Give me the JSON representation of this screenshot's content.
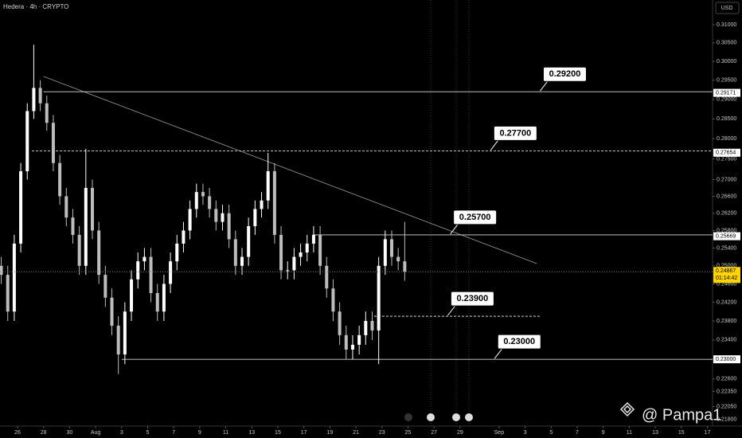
{
  "chart_data": {
    "type": "candlestick",
    "title": "Hedera · 4h · CRYPTO",
    "currency": "USD",
    "watermark": "@ Pampa1",
    "log_scale": true,
    "up_color": "#ffffff",
    "down_color": "#bdbdbd",
    "xlim": [
      -1.345,
      53.4
    ],
    "xticks": [
      {
        "value": 0,
        "label": "26"
      },
      {
        "value": 2,
        "label": "28"
      },
      {
        "value": 4,
        "label": "30"
      },
      {
        "value": 6,
        "label": "Aug"
      },
      {
        "value": 8,
        "label": "3"
      },
      {
        "value": 10,
        "label": "5"
      },
      {
        "value": 12,
        "label": "7"
      },
      {
        "value": 14,
        "label": "9"
      },
      {
        "value": 16,
        "label": "11"
      },
      {
        "value": 18,
        "label": "13"
      },
      {
        "value": 20,
        "label": "15"
      },
      {
        "value": 22,
        "label": "17"
      },
      {
        "value": 24,
        "label": "19"
      },
      {
        "value": 26,
        "label": "21"
      },
      {
        "value": 28,
        "label": "23"
      },
      {
        "value": 30,
        "label": "25"
      },
      {
        "value": 32,
        "label": "27"
      },
      {
        "value": 34,
        "label": "29"
      },
      {
        "value": 37,
        "label": "Sep"
      },
      {
        "value": 39,
        "label": "3"
      },
      {
        "value": 41,
        "label": "5"
      },
      {
        "value": 43,
        "label": "7"
      },
      {
        "value": 45,
        "label": "9"
      },
      {
        "value": 47,
        "label": "11"
      },
      {
        "value": 49,
        "label": "13"
      },
      {
        "value": 51,
        "label": "15"
      },
      {
        "value": 53,
        "label": "17"
      }
    ],
    "ylim": [
      0.2167,
      0.3169
    ],
    "yticks": [
      {
        "value": 0.31,
        "label": "0.31000"
      },
      {
        "value": 0.305,
        "label": "0.30500"
      },
      {
        "value": 0.3,
        "label": "0.30000"
      },
      {
        "value": 0.295,
        "label": "0.29500"
      },
      {
        "value": 0.29,
        "label": "0.29000"
      },
      {
        "value": 0.285,
        "label": "0.28500"
      },
      {
        "value": 0.28,
        "label": "0.28000"
      },
      {
        "value": 0.275,
        "label": "0.27500"
      },
      {
        "value": 0.27,
        "label": "0.27000"
      },
      {
        "value": 0.266,
        "label": "0.26600"
      },
      {
        "value": 0.262,
        "label": "0.26200"
      },
      {
        "value": 0.258,
        "label": "0.25800"
      },
      {
        "value": 0.254,
        "label": "0.25400"
      },
      {
        "value": 0.25,
        "label": "0.25000"
      },
      {
        "value": 0.246,
        "label": "0.24600"
      },
      {
        "value": 0.242,
        "label": "0.24200"
      },
      {
        "value": 0.238,
        "label": "0.23800"
      },
      {
        "value": 0.234,
        "label": "0.23400"
      },
      {
        "value": 0.23,
        "label": "0.23000"
      },
      {
        "value": 0.226,
        "label": "0.22600"
      },
      {
        "value": 0.2235,
        "label": "0.22350"
      },
      {
        "value": 0.2205,
        "label": "0.22050"
      },
      {
        "value": 0.218,
        "label": "0.21800"
      }
    ],
    "x": [
      -1.25,
      -0.75,
      -0.25,
      0.25,
      0.75,
      1.25,
      1.75,
      2.25,
      2.75,
      3.25,
      3.75,
      4.25,
      4.75,
      5.25,
      5.75,
      6.25,
      6.75,
      7.25,
      7.75,
      8.25,
      8.75,
      9.25,
      9.75,
      10.25,
      10.75,
      11.25,
      11.75,
      12.25,
      12.75,
      13.25,
      13.75,
      14.25,
      14.75,
      15.25,
      15.75,
      16.25,
      16.75,
      17.25,
      17.75,
      18.25,
      18.75,
      19.25,
      19.75,
      20.25,
      20.75,
      21.25,
      21.75,
      22.25,
      22.75,
      23.25,
      23.75,
      24.25,
      24.75,
      25.25,
      25.75,
      26.25,
      26.75,
      27.25,
      27.75,
      28.25,
      28.75,
      29.25,
      29.75
    ],
    "candles": {
      "open": [
        0.25,
        0.248,
        0.24,
        0.255,
        0.272,
        0.287,
        0.293,
        0.289,
        0.284,
        0.274,
        0.266,
        0.261,
        0.257,
        0.25,
        0.268,
        0.258,
        0.248,
        0.243,
        0.237,
        0.231,
        0.24,
        0.247,
        0.251,
        0.252,
        0.244,
        0.24,
        0.246,
        0.251,
        0.255,
        0.258,
        0.263,
        0.267,
        0.266,
        0.263,
        0.26,
        0.262,
        0.256,
        0.25,
        0.252,
        0.259,
        0.263,
        0.265,
        0.272,
        0.257,
        0.249,
        0.249,
        0.252,
        0.253,
        0.255,
        0.257,
        0.25,
        0.245,
        0.24,
        0.235,
        0.232,
        0.233,
        0.235,
        0.238,
        0.236,
        0.25,
        0.256,
        0.252,
        0.251
      ],
      "high": [
        0.252,
        0.25,
        0.257,
        0.274,
        0.289,
        0.3045,
        0.295,
        0.291,
        0.286,
        0.276,
        0.268,
        0.263,
        0.259,
        0.2775,
        0.27,
        0.26,
        0.25,
        0.245,
        0.239,
        0.242,
        0.249,
        0.253,
        0.254,
        0.254,
        0.246,
        0.248,
        0.253,
        0.257,
        0.26,
        0.265,
        0.269,
        0.269,
        0.268,
        0.265,
        0.264,
        0.264,
        0.258,
        0.254,
        0.261,
        0.265,
        0.267,
        0.2765,
        0.274,
        0.259,
        0.251,
        0.254,
        0.255,
        0.257,
        0.259,
        0.259,
        0.252,
        0.247,
        0.242,
        0.237,
        0.235,
        0.237,
        0.24,
        0.24,
        0.252,
        0.258,
        0.258,
        0.254,
        0.26
      ],
      "low": [
        0.246,
        0.238,
        0.238,
        0.253,
        0.27,
        0.285,
        0.287,
        0.282,
        0.272,
        0.264,
        0.259,
        0.255,
        0.248,
        0.248,
        0.256,
        0.246,
        0.241,
        0.235,
        0.227,
        0.229,
        0.238,
        0.245,
        0.249,
        0.242,
        0.238,
        0.238,
        0.244,
        0.249,
        0.253,
        0.256,
        0.261,
        0.264,
        0.261,
        0.258,
        0.258,
        0.254,
        0.248,
        0.248,
        0.25,
        0.257,
        0.261,
        0.263,
        0.255,
        0.247,
        0.247,
        0.247,
        0.25,
        0.251,
        0.253,
        0.248,
        0.243,
        0.238,
        0.233,
        0.23,
        0.23,
        0.231,
        0.233,
        0.234,
        0.229,
        0.248,
        0.25,
        0.249,
        0.2467
      ],
      "close": [
        0.248,
        0.24,
        0.255,
        0.272,
        0.287,
        0.293,
        0.289,
        0.284,
        0.274,
        0.266,
        0.261,
        0.257,
        0.25,
        0.268,
        0.258,
        0.248,
        0.243,
        0.237,
        0.231,
        0.24,
        0.247,
        0.251,
        0.252,
        0.244,
        0.24,
        0.246,
        0.251,
        0.255,
        0.258,
        0.263,
        0.267,
        0.266,
        0.263,
        0.26,
        0.262,
        0.256,
        0.25,
        0.252,
        0.259,
        0.263,
        0.265,
        0.272,
        0.257,
        0.249,
        0.249,
        0.252,
        0.253,
        0.255,
        0.257,
        0.25,
        0.245,
        0.24,
        0.235,
        0.232,
        0.233,
        0.235,
        0.238,
        0.236,
        0.25,
        0.256,
        0.252,
        0.251,
        0.2487
      ]
    },
    "levels": [
      {
        "value": 0.292,
        "label": "0.29200",
        "style": "solid"
      },
      {
        "value": 0.277,
        "label": "0.27700",
        "style": "dashed"
      },
      {
        "value": 0.257,
        "label": "0.25700",
        "style": "solid"
      },
      {
        "value": 0.239,
        "label": "0.23900",
        "style": "dashed"
      },
      {
        "value": 0.23,
        "label": "0.23000",
        "style": "solid"
      }
    ],
    "trendline": {
      "start": 0.296,
      "end": 0.2505
    },
    "axis_tags": [
      {
        "value": 0.29171,
        "label": "0.29171"
      },
      {
        "value": 0.27654,
        "label": "0.27654"
      },
      {
        "value": 0.25669,
        "label": "0.25669"
      },
      {
        "value": 0.23,
        "label": "0.23000"
      }
    ],
    "last_price": {
      "value": 0.24867,
      "label": "0.24867",
      "countdown": "01:14:42"
    }
  }
}
